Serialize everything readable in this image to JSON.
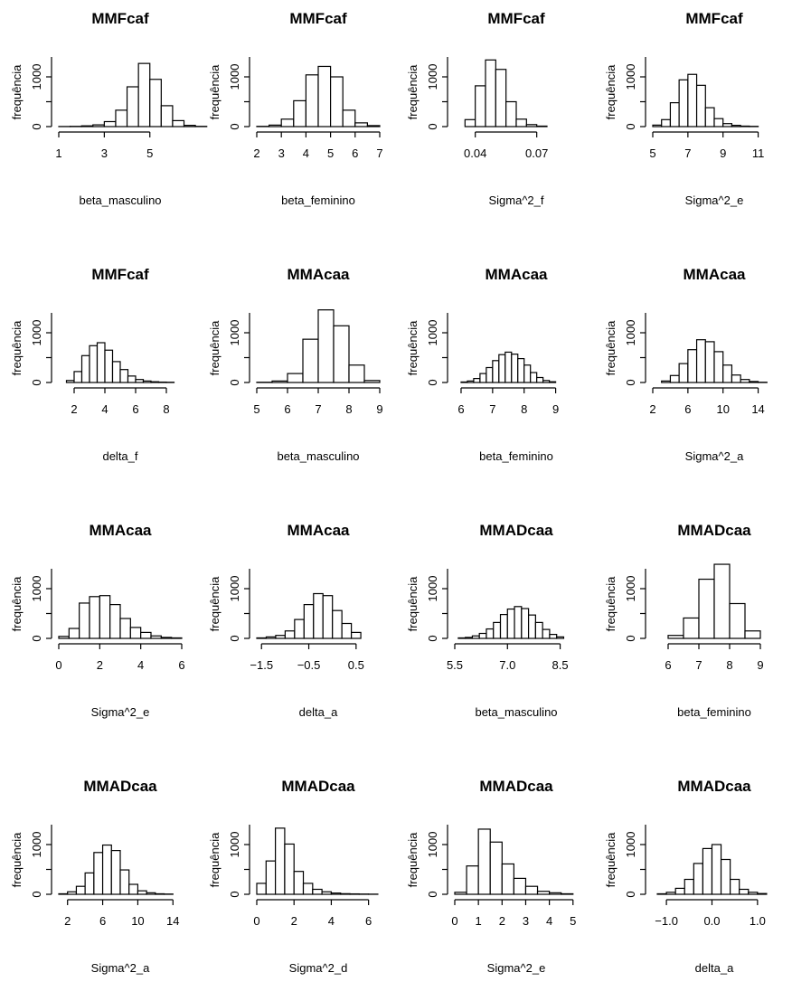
{
  "chart_data": [
    {
      "type": "bar",
      "title": "MMFcaf",
      "xlabel": "beta_masculino",
      "ylabel": "frequência",
      "xlim": [
        1,
        6.4
      ],
      "ylim": [
        0,
        1400
      ],
      "xticks": [
        1,
        3,
        5
      ],
      "xtick_labels": [
        "1",
        "3",
        "5"
      ],
      "yticks": [
        0,
        1000
      ],
      "ytick_labels": [
        "0",
        "1000"
      ],
      "grid": false,
      "bin_start": 1,
      "bin_width": 0.5,
      "values": [
        2,
        5,
        15,
        35,
        100,
        330,
        800,
        1270,
        950,
        420,
        120,
        25,
        5
      ]
    },
    {
      "type": "bar",
      "title": "MMFcaf",
      "xlabel": "beta_feminino",
      "ylabel": "frequência",
      "xlim": [
        2,
        7
      ],
      "ylim": [
        0,
        1400
      ],
      "xticks": [
        2,
        3,
        4,
        5,
        6,
        7
      ],
      "xtick_labels": [
        "2",
        "3",
        "4",
        "5",
        "6",
        "7"
      ],
      "yticks": [
        0,
        1000
      ],
      "ytick_labels": [
        "0",
        "1000"
      ],
      "grid": false,
      "bin_start": 2,
      "bin_width": 0.5,
      "values": [
        5,
        30,
        150,
        520,
        1040,
        1210,
        1000,
        330,
        75,
        20
      ]
    },
    {
      "type": "bar",
      "title": "MMFcaf",
      "xlabel": "Sigma^2_f",
      "ylabel": "frequência",
      "xlim": [
        0.03,
        0.09
      ],
      "ylim": [
        0,
        1400
      ],
      "xticks": [
        0.04,
        0.07
      ],
      "xtick_labels": [
        "0.04",
        "0.07"
      ],
      "yticks": [
        0,
        1000
      ],
      "ytick_labels": [
        "0",
        "1000"
      ],
      "grid": false,
      "bin_start": 0.035,
      "bin_width": 0.005,
      "values": [
        140,
        820,
        1340,
        1150,
        500,
        150,
        40,
        10
      ]
    },
    {
      "type": "bar",
      "title": "MMFcaf",
      "xlabel": "Sigma^2_e",
      "ylabel": "frequência",
      "xlim": [
        5,
        12
      ],
      "ylim": [
        0,
        1400
      ],
      "xticks": [
        5,
        7,
        9,
        11
      ],
      "xtick_labels": [
        "5",
        "7",
        "9",
        "11"
      ],
      "yticks": [
        0,
        1000
      ],
      "ytick_labels": [
        "0",
        "1000"
      ],
      "grid": false,
      "bin_start": 5,
      "bin_width": 0.5,
      "values": [
        30,
        140,
        480,
        940,
        1050,
        830,
        380,
        160,
        60,
        25,
        10,
        5
      ]
    },
    {
      "type": "bar",
      "title": "MMFcaf",
      "xlabel": "delta_f",
      "ylabel": "frequência",
      "xlim": [
        1,
        9
      ],
      "ylim": [
        0,
        1400
      ],
      "xticks": [
        2,
        4,
        6,
        8
      ],
      "xtick_labels": [
        "2",
        "4",
        "6",
        "8"
      ],
      "yticks": [
        0,
        1000
      ],
      "ytick_labels": [
        "0",
        "1000"
      ],
      "grid": false,
      "bin_start": 1.5,
      "bin_width": 0.5,
      "values": [
        40,
        220,
        540,
        740,
        800,
        650,
        420,
        260,
        130,
        60,
        30,
        15,
        8,
        5
      ]
    },
    {
      "type": "bar",
      "title": "MMAcaa",
      "xlabel": "beta_masculino",
      "ylabel": "frequência",
      "xlim": [
        5,
        9
      ],
      "ylim": [
        0,
        1400
      ],
      "xticks": [
        5,
        6,
        7,
        8,
        9
      ],
      "xtick_labels": [
        "5",
        "6",
        "7",
        "8",
        "9"
      ],
      "yticks": [
        0,
        1000
      ],
      "ytick_labels": [
        "0",
        "1000"
      ],
      "grid": false,
      "bin_start": 5,
      "bin_width": 0.5,
      "values": [
        5,
        30,
        180,
        870,
        1460,
        1140,
        350,
        40
      ]
    },
    {
      "type": "bar",
      "title": "MMAcaa",
      "xlabel": "beta_feminino",
      "ylabel": "frequência",
      "xlim": [
        5.8,
        9.7
      ],
      "ylim": [
        0,
        1400
      ],
      "xticks": [
        6,
        7,
        8,
        9
      ],
      "xtick_labels": [
        "6",
        "7",
        "8",
        "9"
      ],
      "yticks": [
        0,
        1000
      ],
      "ytick_labels": [
        "0",
        "1000"
      ],
      "grid": false,
      "bin_start": 6,
      "bin_width": 0.2,
      "values": [
        10,
        30,
        80,
        180,
        300,
        440,
        560,
        610,
        570,
        480,
        350,
        200,
        100,
        40,
        15
      ]
    },
    {
      "type": "bar",
      "title": "MMAcaa",
      "xlabel": "Sigma^2_a",
      "ylabel": "frequência",
      "xlim": [
        2,
        16
      ],
      "ylim": [
        0,
        1400
      ],
      "xticks": [
        2,
        6,
        10,
        14
      ],
      "xtick_labels": [
        "2",
        "6",
        "10",
        "14"
      ],
      "yticks": [
        0,
        1000
      ],
      "ytick_labels": [
        "0",
        "1000"
      ],
      "grid": false,
      "bin_start": 3,
      "bin_width": 1,
      "values": [
        30,
        140,
        380,
        660,
        860,
        820,
        620,
        350,
        150,
        60,
        20,
        5
      ]
    },
    {
      "type": "bar",
      "title": "MMAcaa",
      "xlabel": "Sigma^2_e",
      "ylabel": "frequência",
      "xlim": [
        0,
        6
      ],
      "ylim": [
        0,
        1400
      ],
      "xticks": [
        0,
        2,
        4,
        6
      ],
      "xtick_labels": [
        "0",
        "2",
        "4",
        "6"
      ],
      "yticks": [
        0,
        1000
      ],
      "ytick_labels": [
        "0",
        "1000"
      ],
      "grid": false,
      "bin_start": 0,
      "bin_width": 0.5,
      "values": [
        40,
        200,
        710,
        840,
        860,
        680,
        400,
        220,
        120,
        50,
        20,
        10
      ]
    },
    {
      "type": "bar",
      "title": "MMAcaa",
      "xlabel": "delta_a",
      "ylabel": "frequência",
      "xlim": [
        -1.6,
        1.0
      ],
      "ylim": [
        0,
        1400
      ],
      "xticks": [
        -1.5,
        -0.5,
        0.5
      ],
      "xtick_labels": [
        "−1.5",
        "−0.5",
        "0.5"
      ],
      "yticks": [
        0,
        1000
      ],
      "ytick_labels": [
        "0",
        "1000"
      ],
      "grid": false,
      "bin_start": -1.6,
      "bin_width": 0.2,
      "values": [
        10,
        30,
        60,
        150,
        380,
        680,
        900,
        860,
        560,
        300,
        120
      ]
    },
    {
      "type": "bar",
      "title": "MMADcaa",
      "xlabel": "beta_masculino",
      "ylabel": "frequência",
      "xlim": [
        5.5,
        9.0
      ],
      "ylim": [
        0,
        1400
      ],
      "xticks": [
        5.5,
        7.0,
        8.5
      ],
      "xtick_labels": [
        "5.5",
        "7.0",
        "8.5"
      ],
      "yticks": [
        0,
        1000
      ],
      "ytick_labels": [
        "0",
        "1000"
      ],
      "grid": false,
      "bin_start": 5.6,
      "bin_width": 0.2,
      "values": [
        10,
        20,
        50,
        100,
        190,
        320,
        480,
        590,
        640,
        600,
        470,
        320,
        180,
        80,
        30
      ]
    },
    {
      "type": "bar",
      "title": "MMADcaa",
      "xlabel": "beta_feminino",
      "ylabel": "frequência",
      "xlim": [
        5.5,
        9.5
      ],
      "ylim": [
        0,
        1400
      ],
      "xticks": [
        6,
        7,
        8,
        9
      ],
      "xtick_labels": [
        "6",
        "7",
        "8",
        "9"
      ],
      "yticks": [
        0,
        1000
      ],
      "ytick_labels": [
        "0",
        "1000"
      ],
      "grid": false,
      "bin_start": 6,
      "bin_width": 0.5,
      "values": [
        60,
        410,
        1190,
        1490,
        700,
        150
      ]
    },
    {
      "type": "bar",
      "title": "MMADcaa",
      "xlabel": "Sigma^2_a",
      "ylabel": "frequência",
      "xlim": [
        1,
        15
      ],
      "ylim": [
        0,
        1400
      ],
      "xticks": [
        2,
        6,
        10,
        14
      ],
      "xtick_labels": [
        "2",
        "6",
        "10",
        "14"
      ],
      "yticks": [
        0,
        1000
      ],
      "ytick_labels": [
        "0",
        "1000"
      ],
      "grid": false,
      "bin_start": 1,
      "bin_width": 1,
      "values": [
        10,
        50,
        160,
        430,
        840,
        990,
        880,
        490,
        200,
        70,
        30,
        10,
        5
      ]
    },
    {
      "type": "bar",
      "title": "MMADcaa",
      "xlabel": "Sigma^2_d",
      "ylabel": "frequência",
      "xlim": [
        0,
        6.6
      ],
      "ylim": [
        0,
        1400
      ],
      "xticks": [
        0,
        2,
        4,
        6
      ],
      "xtick_labels": [
        "0",
        "2",
        "4",
        "6"
      ],
      "yticks": [
        0,
        1000
      ],
      "ytick_labels": [
        "0",
        "1000"
      ],
      "grid": false,
      "bin_start": 0,
      "bin_width": 0.5,
      "values": [
        220,
        670,
        1330,
        1010,
        460,
        220,
        100,
        50,
        25,
        12,
        8,
        5,
        3
      ]
    },
    {
      "type": "bar",
      "title": "MMADcaa",
      "xlabel": "Sigma^2_e",
      "ylabel": "frequência",
      "xlim": [
        0,
        5.2
      ],
      "ylim": [
        0,
        1400
      ],
      "xticks": [
        0,
        1,
        2,
        3,
        4,
        5
      ],
      "xtick_labels": [
        "0",
        "1",
        "2",
        "3",
        "4",
        "5"
      ],
      "yticks": [
        0,
        1000
      ],
      "ytick_labels": [
        "0",
        "1000"
      ],
      "grid": false,
      "bin_start": 0,
      "bin_width": 0.5,
      "values": [
        40,
        570,
        1310,
        1050,
        610,
        320,
        160,
        60,
        30,
        10
      ]
    },
    {
      "type": "bar",
      "title": "MMADcaa",
      "xlabel": "delta_a",
      "ylabel": "frequência",
      "xlim": [
        -1.3,
        1.4
      ],
      "ylim": [
        0,
        1400
      ],
      "xticks": [
        -1.0,
        0.0,
        1.0
      ],
      "xtick_labels": [
        "−1.0",
        "0.0",
        "1.0"
      ],
      "yticks": [
        0,
        1000
      ],
      "ytick_labels": [
        "0",
        "1000"
      ],
      "grid": false,
      "bin_start": -1.2,
      "bin_width": 0.2,
      "values": [
        10,
        40,
        120,
        300,
        620,
        920,
        1000,
        700,
        300,
        100,
        40,
        15
      ]
    }
  ]
}
